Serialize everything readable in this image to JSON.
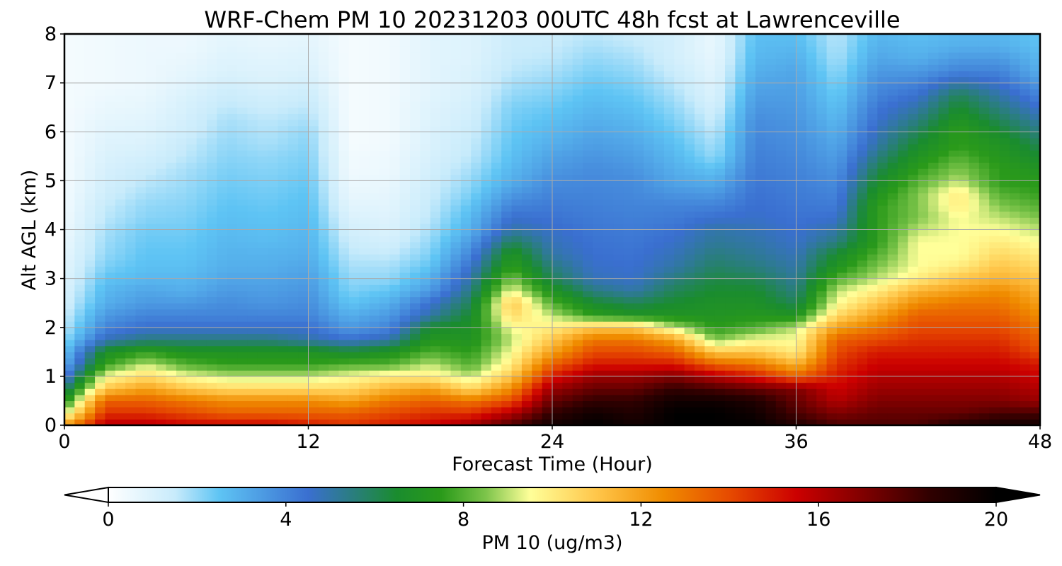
{
  "chart_data": {
    "type": "heatmap",
    "title": "WRF-Chem PM 10  20231203 00UTC 48h fcst at Lawrenceville",
    "xlabel": "Forecast Time (Hour)",
    "ylabel": "Alt AGL (km)",
    "x_ticks": [
      "0",
      "12",
      "24",
      "36",
      "48"
    ],
    "y_ticks": [
      "0",
      "1",
      "2",
      "3",
      "4",
      "5",
      "6",
      "7",
      "8"
    ],
    "xlim": [
      0,
      48
    ],
    "ylim": [
      0,
      8
    ],
    "grid": true,
    "colorbar": {
      "label": "PM 10  (ug/m3)",
      "ticks": [
        "0",
        "4",
        "8",
        "12",
        "16",
        "20"
      ],
      "range": [
        0,
        20
      ],
      "extend": "both",
      "placement": "bottom",
      "colormap": [
        {
          "v": 0,
          "c": "#ffffff"
        },
        {
          "v": 1.5,
          "c": "#c8ebfb"
        },
        {
          "v": 2.5,
          "c": "#5ec4f4"
        },
        {
          "v": 4.5,
          "c": "#3a6fd0"
        },
        {
          "v": 6.5,
          "c": "#1a8c2e"
        },
        {
          "v": 7.5,
          "c": "#2a9a1a"
        },
        {
          "v": 8.5,
          "c": "#7cc44a"
        },
        {
          "v": 9.5,
          "c": "#ffff99"
        },
        {
          "v": 11,
          "c": "#ffc64a"
        },
        {
          "v": 12.5,
          "c": "#f08c00"
        },
        {
          "v": 14,
          "c": "#e64a00"
        },
        {
          "v": 15.5,
          "c": "#cc0000"
        },
        {
          "v": 17,
          "c": "#800000"
        },
        {
          "v": 18.5,
          "c": "#300000"
        },
        {
          "v": 20,
          "c": "#000000"
        }
      ]
    },
    "profile_hours": [
      0,
      2,
      4,
      6,
      8,
      10,
      12,
      14,
      16,
      18,
      20,
      22,
      24,
      26,
      28,
      30,
      32,
      34,
      36,
      38,
      40,
      42,
      44,
      46,
      48
    ],
    "altitude_km": [
      0,
      0.25,
      0.5,
      0.75,
      1,
      1.25,
      1.5,
      1.75,
      2,
      2.25,
      2.5,
      2.75,
      3,
      3.25,
      3.5,
      3.75,
      4,
      4.25,
      4.5,
      4.75,
      5,
      5.25,
      5.5,
      5.75,
      6,
      6.25,
      6.5,
      6.75,
      7,
      7.25,
      7.5,
      7.75,
      8
    ],
    "pm10_profiles": [
      [
        12.0,
        9.0,
        7.0,
        5.5,
        4.0,
        3.0,
        2.5,
        2.0,
        1.6,
        1.4,
        1.2,
        1.0,
        0.9,
        0.8,
        0.7,
        0.6,
        0.5,
        0.45,
        0.4,
        0.35,
        0.3,
        0.3,
        0.3,
        0.3,
        0.3,
        0.3,
        0.3,
        0.3,
        0.3,
        0.3,
        0.3,
        0.3,
        0.3
      ],
      [
        16.0,
        14.5,
        13.5,
        11.0,
        9.5,
        7.6,
        6.8,
        4.8,
        4.0,
        3.5,
        3.0,
        2.8,
        2.5,
        2.2,
        2.0,
        1.9,
        1.8,
        1.6,
        1.5,
        1.3,
        1.2,
        1.1,
        1.0,
        0.9,
        0.8,
        0.7,
        0.6,
        0.5,
        0.4,
        0.4,
        0.4,
        0.4,
        0.4
      ],
      [
        16.0,
        14.5,
        13.5,
        12.0,
        10.5,
        9.0,
        7.6,
        5.5,
        4.5,
        4.0,
        3.5,
        3.2,
        2.8,
        2.6,
        2.5,
        2.4,
        2.3,
        2.1,
        2.0,
        1.8,
        1.6,
        1.4,
        1.2,
        1.0,
        0.9,
        0.8,
        0.7,
        0.6,
        0.5,
        0.5,
        0.5,
        0.5,
        0.5
      ],
      [
        15.5,
        14.0,
        13.0,
        11.0,
        9.5,
        8.0,
        7.0,
        5.5,
        4.5,
        4.0,
        3.5,
        3.0,
        2.8,
        2.6,
        2.5,
        2.4,
        2.3,
        2.2,
        2.1,
        2.0,
        1.9,
        1.8,
        1.6,
        1.5,
        1.3,
        1.2,
        1.1,
        1.0,
        0.8,
        0.7,
        0.6,
        0.5,
        0.5
      ],
      [
        15.5,
        13.5,
        12.5,
        10.5,
        9.0,
        7.6,
        7.0,
        5.5,
        4.5,
        4.0,
        3.8,
        3.5,
        3.2,
        3.0,
        2.9,
        2.8,
        2.7,
        2.6,
        2.5,
        2.4,
        2.3,
        2.2,
        2.1,
        2.0,
        1.9,
        1.8,
        1.6,
        1.4,
        1.2,
        1.0,
        0.9,
        0.8,
        0.7
      ],
      [
        15.5,
        13.5,
        12.5,
        10.5,
        9.0,
        7.6,
        7.0,
        5.5,
        4.5,
        4.0,
        3.6,
        3.4,
        3.2,
        3.0,
        2.9,
        2.7,
        2.6,
        2.5,
        2.4,
        2.3,
        2.2,
        2.1,
        2.0,
        1.8,
        1.7,
        1.6,
        1.4,
        1.2,
        1.0,
        0.9,
        0.8,
        0.7,
        0.6
      ],
      [
        15.0,
        13.5,
        12.5,
        10.5,
        9.0,
        7.6,
        7.0,
        5.0,
        4.5,
        4.0,
        3.8,
        3.6,
        3.4,
        3.2,
        3.0,
        2.9,
        2.8,
        2.7,
        2.6,
        2.5,
        2.4,
        2.3,
        2.2,
        2.1,
        2.0,
        1.8,
        1.6,
        1.4,
        1.2,
        1.0,
        0.9,
        0.8,
        0.7
      ],
      [
        14.5,
        13.5,
        12.0,
        10.5,
        9.5,
        8.0,
        6.5,
        4.5,
        3.5,
        3.0,
        2.5,
        2.2,
        2.0,
        1.8,
        1.6,
        1.4,
        1.2,
        1.0,
        0.8,
        0.6,
        0.5,
        0.4,
        0.4,
        0.3,
        0.3,
        0.3,
        0.3,
        0.3,
        0.3,
        0.3,
        0.3,
        0.3,
        0.3
      ],
      [
        15.0,
        14.0,
        13.0,
        11.5,
        10.0,
        8.0,
        7.0,
        5.0,
        4.0,
        3.5,
        3.0,
        2.5,
        2.0,
        1.8,
        1.5,
        1.2,
        1.0,
        0.9,
        0.8,
        0.7,
        0.6,
        0.5,
        0.5,
        0.4,
        0.4,
        0.4,
        0.4,
        0.4,
        0.4,
        0.4,
        0.4,
        0.4,
        0.4
      ],
      [
        15.5,
        14.5,
        13.5,
        12.0,
        10.0,
        9.0,
        8.0,
        7.2,
        6.5,
        5.0,
        4.5,
        3.5,
        3.0,
        2.5,
        2.2,
        2.0,
        1.8,
        1.6,
        1.5,
        1.4,
        1.3,
        1.2,
        1.1,
        1.0,
        1.0,
        0.9,
        0.9,
        0.8,
        0.8,
        0.8,
        0.8,
        0.8,
        0.8
      ],
      [
        16.5,
        14.5,
        13.0,
        10.5,
        9.0,
        8.0,
        7.5,
        7.0,
        6.8,
        6.5,
        6.0,
        5.5,
        5.0,
        4.5,
        4.0,
        3.5,
        3.0,
        2.8,
        2.5,
        2.2,
        2.0,
        1.8,
        1.6,
        1.5,
        1.4,
        1.3,
        1.2,
        1.1,
        1.0,
        1.0,
        0.9,
        0.9,
        0.9
      ],
      [
        18.0,
        16.0,
        14.0,
        12.5,
        11.0,
        10.0,
        9.5,
        9.0,
        9.5,
        10.5,
        11.0,
        9.5,
        8.5,
        7.5,
        7.0,
        6.0,
        5.0,
        4.5,
        4.0,
        3.5,
        3.0,
        2.8,
        2.6,
        2.5,
        2.4,
        2.3,
        2.2,
        2.0,
        1.8,
        1.6,
        1.5,
        1.4,
        1.4
      ],
      [
        19.5,
        18.5,
        17.5,
        16.5,
        15.0,
        13.5,
        12.0,
        11.0,
        10.0,
        9.0,
        8.0,
        7.0,
        6.0,
        5.5,
        5.0,
        4.8,
        4.6,
        4.4,
        4.2,
        4.0,
        3.8,
        3.5,
        3.3,
        3.0,
        2.8,
        2.6,
        2.4,
        2.2,
        2.0,
        1.8,
        1.6,
        1.5,
        1.4
      ],
      [
        20.0,
        19.5,
        18.5,
        17.5,
        16.5,
        15.0,
        14.0,
        13.0,
        11.0,
        7.5,
        6.5,
        5.5,
        4.8,
        4.6,
        4.5,
        4.4,
        4.3,
        4.2,
        4.1,
        4.0,
        3.9,
        3.8,
        3.6,
        3.4,
        3.2,
        3.0,
        2.8,
        2.6,
        2.4,
        2.2,
        2.0,
        1.8,
        1.6
      ],
      [
        19.5,
        19.0,
        18.5,
        17.5,
        16.5,
        15.0,
        14.0,
        13.0,
        11.0,
        7.0,
        6.0,
        5.0,
        4.6,
        4.5,
        4.4,
        4.3,
        4.2,
        4.1,
        4.0,
        3.9,
        3.8,
        3.6,
        3.4,
        3.2,
        3.0,
        2.8,
        2.6,
        2.4,
        2.2,
        2.0,
        1.8,
        1.6,
        1.4
      ],
      [
        20.0,
        20.0,
        19.5,
        18.5,
        17.0,
        15.0,
        13.5,
        12.0,
        9.0,
        7.0,
        6.5,
        6.0,
        5.5,
        5.0,
        4.8,
        4.6,
        4.4,
        4.2,
        4.0,
        3.6,
        3.2,
        3.0,
        2.8,
        2.6,
        2.4,
        2.2,
        2.0,
        1.8,
        1.6,
        1.4,
        1.2,
        1.2,
        1.2
      ],
      [
        20.0,
        20.0,
        19.5,
        18.0,
        16.0,
        13.5,
        11.0,
        8.5,
        7.5,
        7.0,
        6.8,
        6.5,
        6.2,
        5.8,
        5.5,
        5.2,
        5.0,
        4.5,
        4.0,
        3.5,
        3.0,
        2.5,
        2.0,
        1.8,
        1.6,
        1.4,
        1.2,
        1.0,
        0.9,
        0.8,
        0.7,
        0.6,
        0.6
      ],
      [
        20.0,
        19.5,
        19.0,
        17.5,
        15.0,
        13.0,
        11.0,
        9.5,
        8.0,
        7.2,
        6.8,
        6.5,
        6.0,
        5.5,
        5.2,
        5.0,
        4.8,
        4.6,
        4.5,
        4.4,
        4.3,
        4.2,
        4.1,
        4.0,
        3.9,
        3.8,
        3.6,
        3.4,
        3.2,
        3.0,
        2.8,
        2.7,
        2.6
      ],
      [
        19.0,
        18.0,
        17.5,
        17.0,
        13.5,
        11.5,
        10.0,
        9.5,
        9.0,
        7.0,
        6.0,
        5.5,
        5.2,
        5.0,
        4.8,
        4.6,
        4.5,
        4.4,
        4.3,
        4.2,
        4.1,
        4.0,
        3.9,
        3.8,
        3.7,
        3.6,
        3.5,
        3.4,
        3.3,
        3.2,
        3.0,
        2.8,
        2.6
      ],
      [
        18.0,
        17.0,
        16.0,
        15.5,
        15.0,
        14.5,
        14.0,
        13.5,
        12.0,
        10.5,
        9.5,
        9.0,
        8.0,
        7.0,
        6.5,
        5.5,
        5.0,
        4.5,
        4.2,
        4.0,
        3.8,
        3.6,
        3.4,
        3.2,
        3.0,
        2.8,
        2.6,
        2.4,
        2.2,
        2.0,
        1.8,
        1.7,
        1.6
      ],
      [
        18.0,
        17.5,
        17.0,
        16.5,
        16.0,
        15.5,
        15.0,
        14.0,
        13.0,
        12.0,
        11.0,
        10.0,
        9.0,
        8.5,
        8.0,
        7.5,
        7.5,
        7.5,
        7.5,
        7.0,
        6.5,
        6.0,
        5.5,
        5.0,
        4.8,
        4.5,
        4.3,
        4.0,
        3.8,
        3.5,
        3.2,
        3.0,
        2.8
      ],
      [
        18.0,
        17.5,
        17.0,
        16.5,
        16.0,
        15.5,
        15.0,
        14.5,
        14.0,
        13.5,
        12.5,
        11.5,
        10.0,
        9.5,
        9.5,
        9.5,
        9.0,
        8.5,
        8.5,
        8.5,
        8.0,
        7.5,
        7.0,
        6.5,
        6.0,
        5.5,
        5.0,
        4.5,
        4.0,
        3.5,
        3.0,
        2.8,
        2.6
      ],
      [
        19.0,
        17.5,
        17.0,
        16.5,
        16.0,
        15.5,
        15.0,
        14.5,
        14.0,
        13.5,
        13.0,
        12.0,
        11.0,
        10.0,
        9.5,
        9.5,
        9.5,
        9.5,
        10.0,
        10.0,
        9.0,
        8.5,
        8.0,
        7.5,
        7.5,
        7.0,
        6.5,
        6.0,
        5.0,
        4.0,
        3.5,
        3.0,
        2.8
      ],
      [
        19.5,
        18.0,
        17.0,
        16.5,
        16.0,
        15.5,
        15.0,
        14.5,
        14.0,
        13.5,
        13.0,
        12.5,
        11.5,
        11.0,
        10.5,
        10.0,
        9.5,
        9.0,
        8.5,
        8.0,
        7.5,
        7.5,
        7.2,
        7.0,
        6.5,
        6.0,
        5.5,
        5.0,
        4.5,
        4.0,
        3.5,
        3.0,
        2.8
      ],
      [
        19.5,
        18.0,
        16.5,
        16.0,
        15.5,
        15.0,
        14.0,
        13.5,
        13.0,
        12.5,
        12.0,
        11.5,
        11.0,
        10.5,
        10.0,
        9.5,
        9.0,
        8.5,
        8.0,
        7.6,
        7.4,
        7.0,
        6.5,
        6.0,
        5.5,
        5.0,
        4.5,
        4.0,
        3.5,
        3.0,
        2.8,
        2.6,
        2.5
      ]
    ]
  }
}
